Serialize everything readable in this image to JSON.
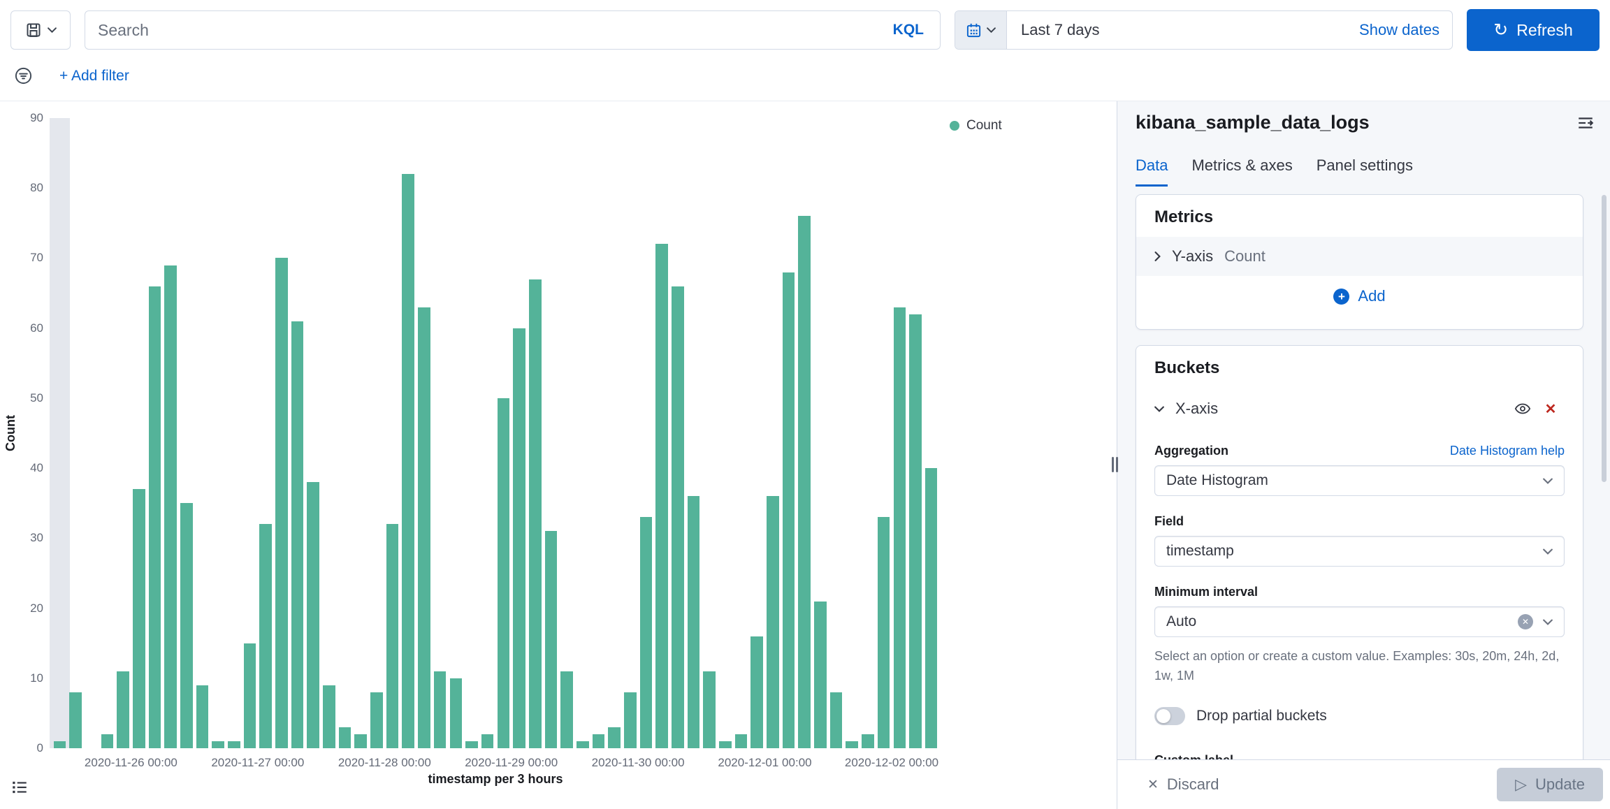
{
  "colors": {
    "accent": "#0b64cd",
    "bar": "#54b399",
    "danger": "#bd271e"
  },
  "topbar": {
    "search_placeholder": "Search",
    "kql_label": "KQL",
    "date_range": "Last 7 days",
    "show_dates_label": "Show dates",
    "refresh_label": "Refresh",
    "add_filter_label": "+ Add filter"
  },
  "chart_data": {
    "type": "bar",
    "series_name": "Count",
    "color": "#54b399",
    "xlabel": "timestamp per 3 hours",
    "ylabel": "Count",
    "ylim": [
      0,
      90
    ],
    "y_ticks": [
      0,
      10,
      20,
      30,
      40,
      50,
      60,
      70,
      80,
      90
    ],
    "legend_position": "right",
    "grid": false,
    "values": [
      1,
      8,
      0,
      2,
      11,
      37,
      66,
      69,
      35,
      9,
      1,
      1,
      15,
      32,
      70,
      61,
      38,
      9,
      3,
      2,
      8,
      32,
      82,
      63,
      11,
      10,
      1,
      2,
      50,
      60,
      67,
      31,
      11,
      1,
      2,
      3,
      8,
      33,
      72,
      66,
      36,
      11,
      1,
      2,
      16,
      36,
      68,
      76,
      21,
      8,
      1,
      2,
      33,
      63,
      62,
      40
    ],
    "x_tick_indices": [
      5,
      13,
      21,
      29,
      37,
      45,
      53
    ],
    "x_tick_labels": [
      "2020-11-26 00:00",
      "2020-11-27 00:00",
      "2020-11-28 00:00",
      "2020-11-29 00:00",
      "2020-11-30 00:00",
      "2020-12-01 00:00",
      "2020-12-02 00:00"
    ],
    "highlight_band": {
      "start_index": 0,
      "span": 1
    }
  },
  "panel": {
    "title": "kibana_sample_data_logs",
    "tabs": [
      {
        "label": "Data",
        "active": true
      },
      {
        "label": "Metrics & axes",
        "active": false
      },
      {
        "label": "Panel settings",
        "active": false
      }
    ],
    "metrics": {
      "heading": "Metrics",
      "row_label": "Y-axis",
      "row_value": "Count",
      "add_label": "Add"
    },
    "buckets": {
      "heading": "Buckets",
      "row_label": "X-axis",
      "aggregation_label": "Aggregation",
      "aggregation_help": "Date Histogram help",
      "aggregation_value": "Date Histogram",
      "field_label": "Field",
      "field_value": "timestamp",
      "min_interval_label": "Minimum interval",
      "min_interval_value": "Auto",
      "help_text": "Select an option or create a custom value. Examples: 30s, 20m, 24h, 2d, 1w, 1M",
      "toggle_label": "Drop partial buckets",
      "clipped_label": "Custom label"
    },
    "footer": {
      "discard_label": "Discard",
      "update_label": "Update"
    }
  }
}
